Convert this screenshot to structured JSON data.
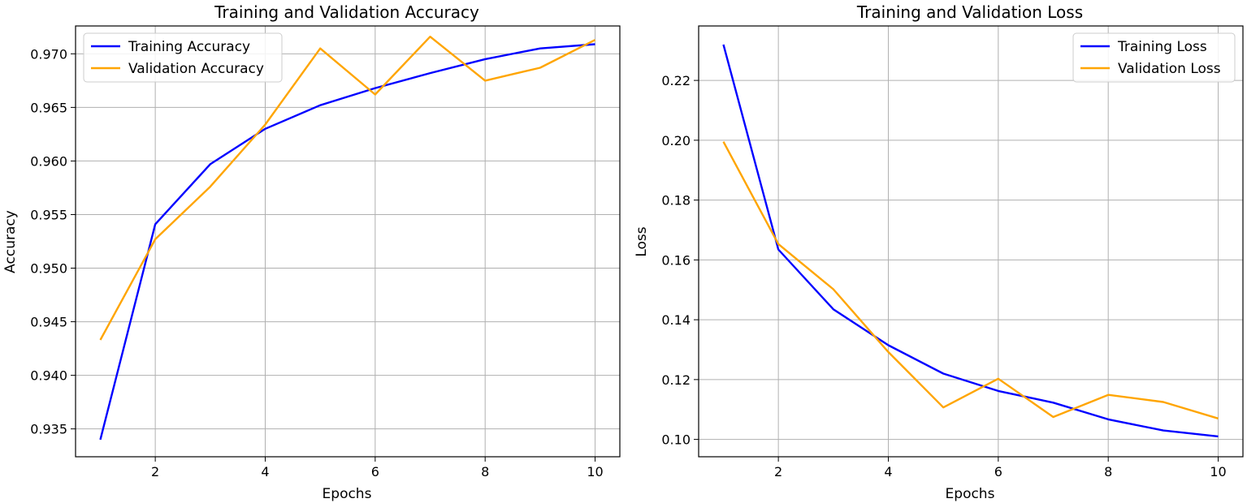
{
  "chart_data": [
    {
      "type": "line",
      "title": "Training and Validation Accuracy",
      "xlabel": "Epochs",
      "ylabel": "Accuracy",
      "xlim": [
        0.55,
        10.45
      ],
      "ylim": [
        0.9324,
        0.9726
      ],
      "xticks": [
        2,
        4,
        6,
        8,
        10
      ],
      "yticks": [
        0.935,
        0.94,
        0.945,
        0.95,
        0.955,
        0.96,
        0.965,
        0.97
      ],
      "xtick_labels": [
        "2",
        "4",
        "6",
        "8",
        "10"
      ],
      "ytick_labels": [
        "0.935",
        "0.940",
        "0.945",
        "0.950",
        "0.955",
        "0.960",
        "0.965",
        "0.970"
      ],
      "grid": true,
      "legend_position": "upper left",
      "x": [
        1,
        2,
        3,
        4,
        5,
        6,
        7,
        8,
        9,
        10
      ],
      "series": [
        {
          "name": "Training Accuracy",
          "color": "#0000ff",
          "values": [
            0.934,
            0.9541,
            0.9597,
            0.963,
            0.9652,
            0.9668,
            0.9682,
            0.9695,
            0.9705,
            0.9709
          ]
        },
        {
          "name": "Validation Accuracy",
          "color": "#ffa500",
          "values": [
            0.9433,
            0.9527,
            0.9576,
            0.9634,
            0.9705,
            0.9662,
            0.9716,
            0.9675,
            0.9687,
            0.9713
          ]
        }
      ]
    },
    {
      "type": "line",
      "title": "Training and Validation Loss",
      "xlabel": "Epochs",
      "ylabel": "Loss",
      "xlim": [
        0.55,
        10.45
      ],
      "ylim": [
        0.0942,
        0.2382
      ],
      "xticks": [
        2,
        4,
        6,
        8,
        10
      ],
      "yticks": [
        0.1,
        0.12,
        0.14,
        0.16,
        0.18,
        0.2,
        0.22
      ],
      "xtick_labels": [
        "2",
        "4",
        "6",
        "8",
        "10"
      ],
      "ytick_labels": [
        "0.10",
        "0.12",
        "0.14",
        "0.16",
        "0.18",
        "0.20",
        "0.22"
      ],
      "grid": true,
      "legend_position": "upper right",
      "x": [
        1,
        2,
        3,
        4,
        5,
        6,
        7,
        8,
        9,
        10
      ],
      "series": [
        {
          "name": "Training Loss",
          "color": "#0000ff",
          "values": [
            0.232,
            0.1635,
            0.1435,
            0.1315,
            0.122,
            0.1162,
            0.1123,
            0.1067,
            0.103,
            0.101
          ]
        },
        {
          "name": "Validation Loss",
          "color": "#ffa500",
          "values": [
            0.1995,
            0.1653,
            0.1502,
            0.1292,
            0.1107,
            0.1203,
            0.1075,
            0.1149,
            0.1125,
            0.107
          ]
        }
      ]
    }
  ]
}
